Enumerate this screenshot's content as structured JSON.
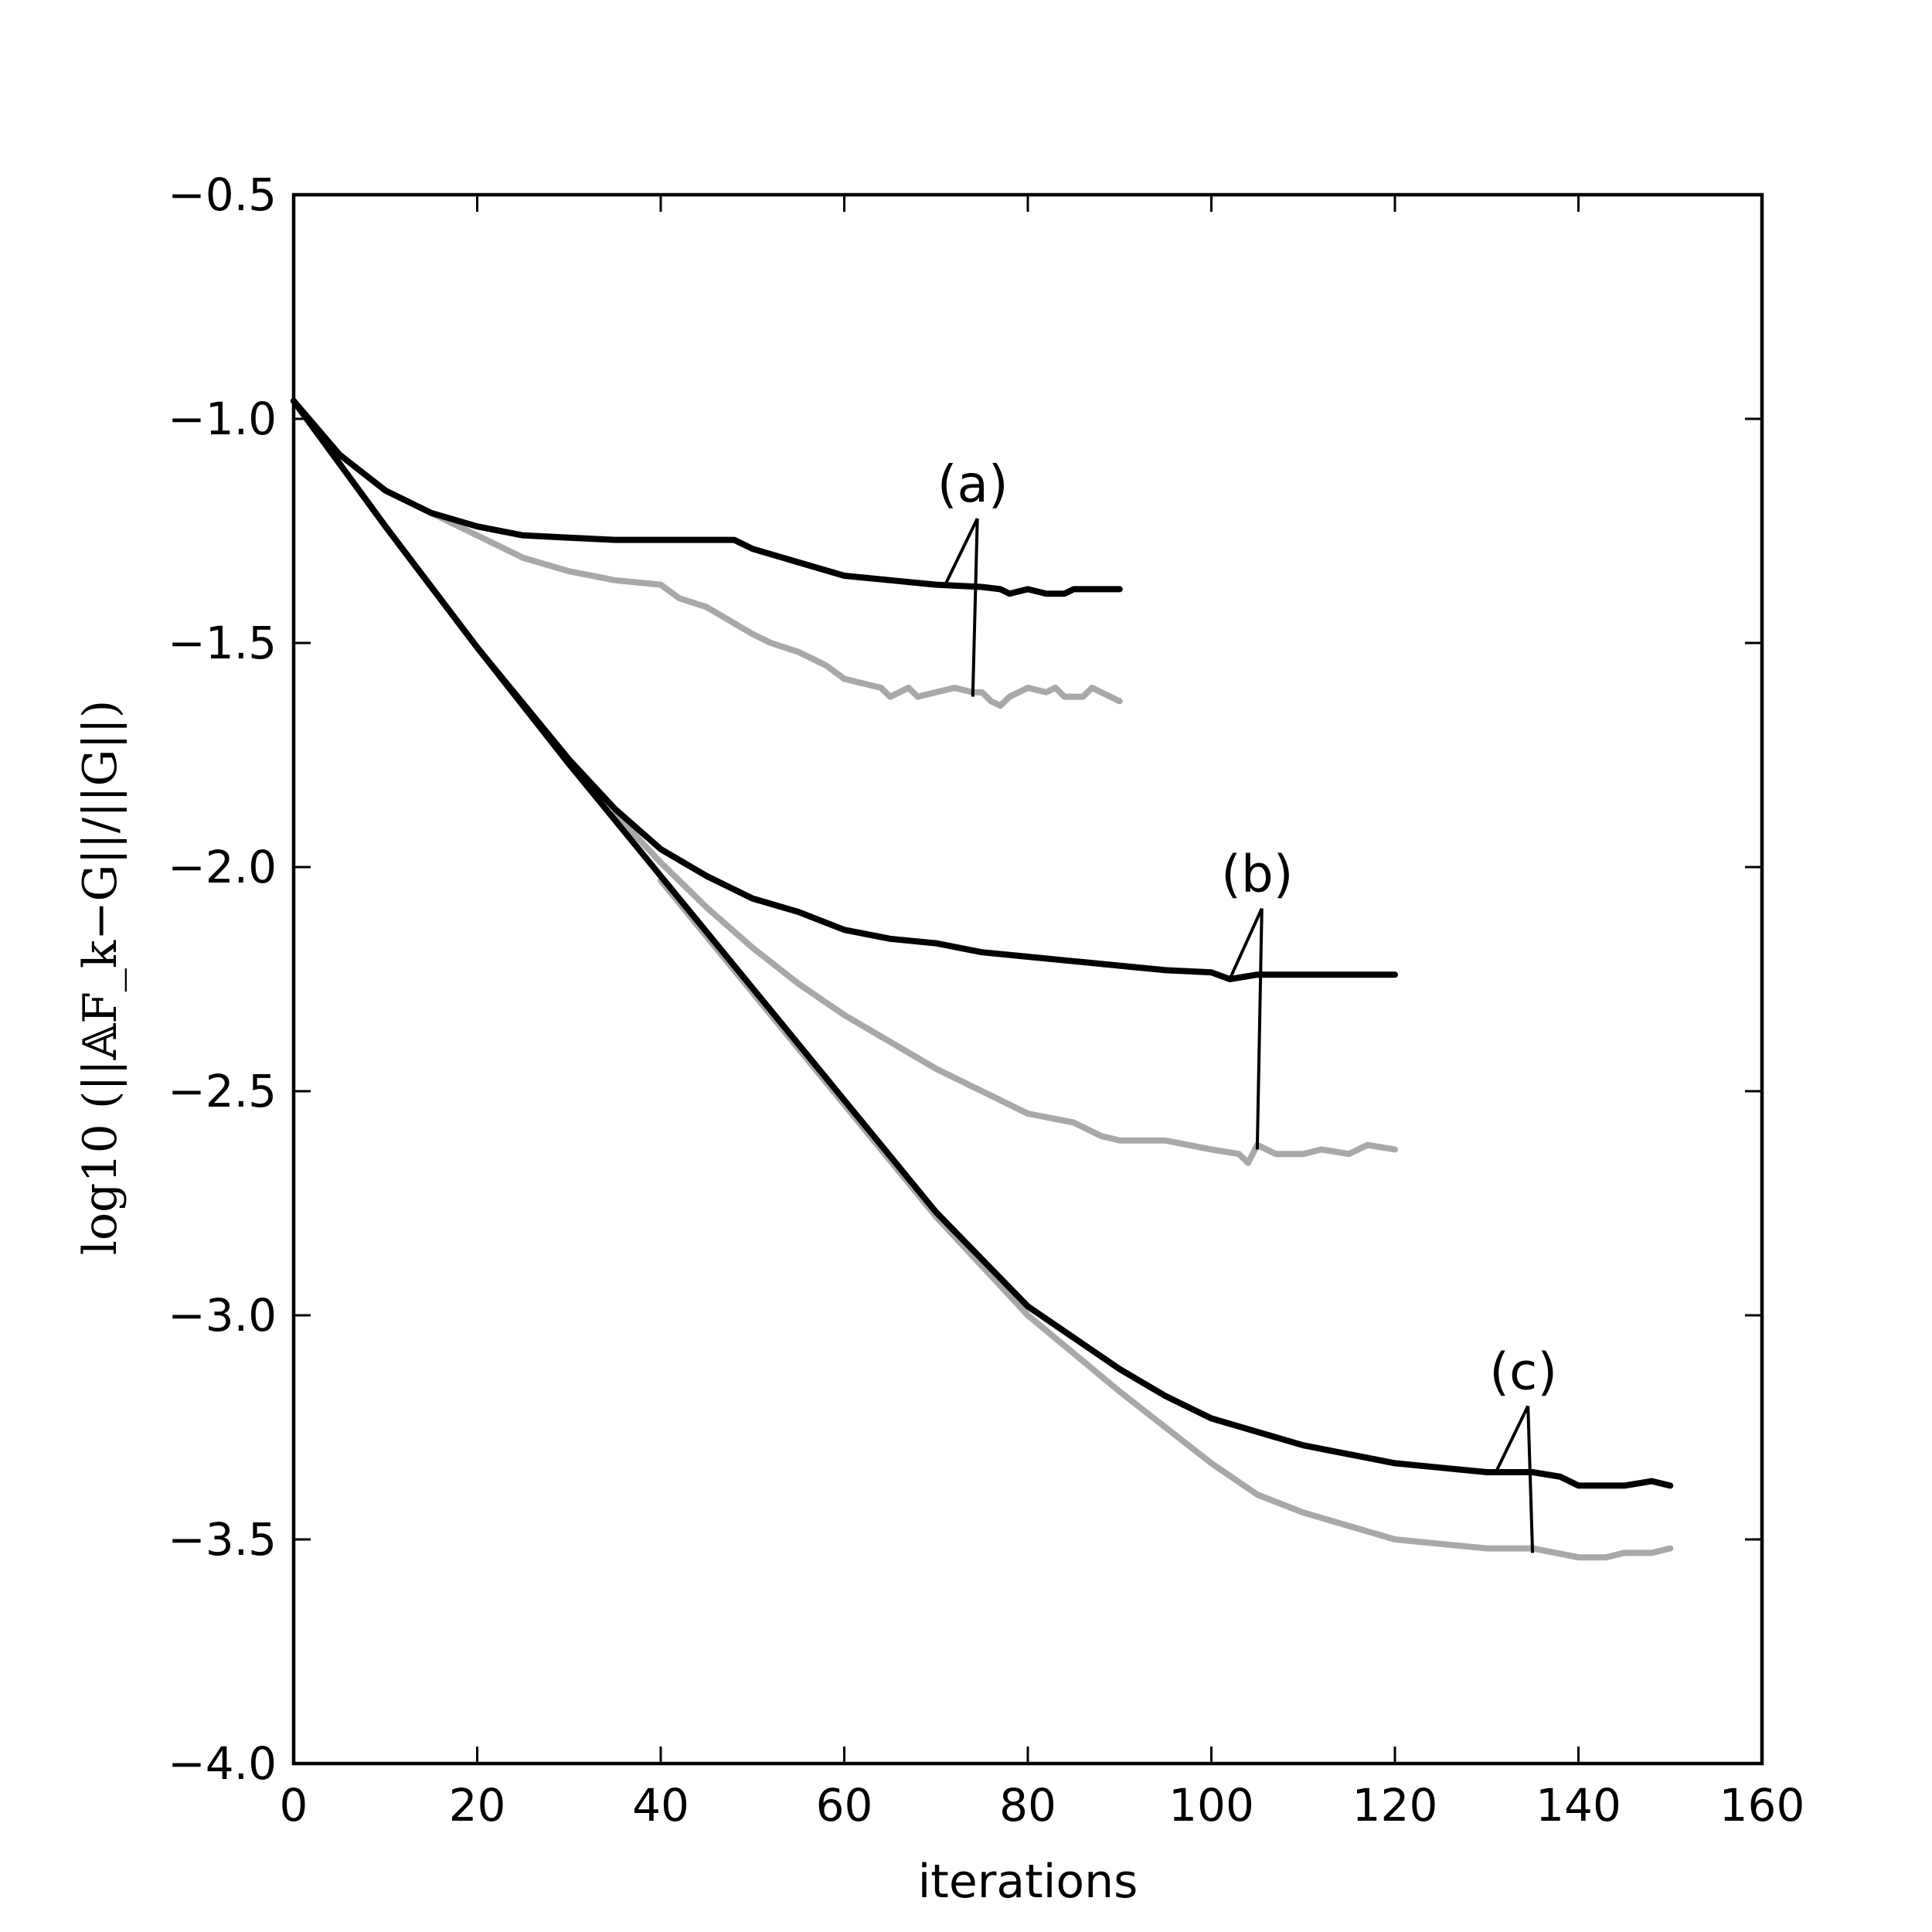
{
  "chart_data": {
    "type": "line",
    "title": "",
    "xlabel": "iterations",
    "ylabel": "log10 (||𝔸F_k−G||/||G||)",
    "xlim": [
      0,
      160
    ],
    "ylim": [
      -4.0,
      -0.5
    ],
    "xticks": [
      0,
      20,
      40,
      60,
      80,
      100,
      120,
      140,
      160
    ],
    "xtick_labels": [
      "0",
      "20",
      "40",
      "60",
      "80",
      "100",
      "120",
      "140",
      "160"
    ],
    "yticks": [
      -0.5,
      -1.0,
      -1.5,
      -2.0,
      -2.5,
      -3.0,
      -3.5,
      -4.0
    ],
    "ytick_labels": [
      "−0.5",
      "−1.0",
      "−1.5",
      "−2.0",
      "−2.5",
      "−3.0",
      "−3.5",
      "−4.0"
    ],
    "grid": false,
    "series": [
      {
        "name": "(a) black",
        "color": "#000000",
        "x": [
          0,
          5,
          10,
          15,
          20,
          25,
          30,
          35,
          40,
          45,
          48,
          50,
          55,
          60,
          65,
          70,
          75,
          77,
          78,
          80,
          82,
          84,
          85,
          90
        ],
        "y": [
          -0.96,
          -1.08,
          -1.16,
          -1.21,
          -1.24,
          -1.26,
          -1.265,
          -1.27,
          -1.27,
          -1.27,
          -1.27,
          -1.29,
          -1.32,
          -1.35,
          -1.36,
          -1.37,
          -1.375,
          -1.38,
          -1.39,
          -1.38,
          -1.39,
          -1.39,
          -1.38,
          -1.38
        ]
      },
      {
        "name": "(a) gray",
        "color": "#a8a8a8",
        "x": [
          15,
          20,
          25,
          30,
          35,
          40,
          42,
          45,
          50,
          52,
          55,
          58,
          60,
          62,
          64,
          65,
          67,
          68,
          70,
          72,
          74,
          75,
          76,
          77,
          78,
          80,
          82,
          83,
          84,
          86,
          87,
          88,
          90
        ],
        "y": [
          -1.21,
          -1.26,
          -1.31,
          -1.34,
          -1.36,
          -1.37,
          -1.4,
          -1.42,
          -1.48,
          -1.5,
          -1.52,
          -1.55,
          -1.58,
          -1.59,
          -1.6,
          -1.62,
          -1.6,
          -1.62,
          -1.61,
          -1.6,
          -1.61,
          -1.61,
          -1.63,
          -1.64,
          -1.62,
          -1.6,
          -1.61,
          -1.6,
          -1.62,
          -1.62,
          -1.6,
          -1.61,
          -1.63
        ]
      },
      {
        "name": "(b) black",
        "color": "#000000",
        "x": [
          0,
          10,
          20,
          30,
          35,
          40,
          45,
          50,
          55,
          60,
          65,
          70,
          75,
          80,
          85,
          90,
          95,
          100,
          102,
          105,
          110,
          115,
          120
        ],
        "y": [
          -0.96,
          -1.24,
          -1.51,
          -1.76,
          -1.87,
          -1.96,
          -2.02,
          -2.07,
          -2.1,
          -2.14,
          -2.16,
          -2.17,
          -2.19,
          -2.2,
          -2.21,
          -2.22,
          -2.23,
          -2.235,
          -2.25,
          -2.24,
          -2.24,
          -2.24,
          -2.24
        ]
      },
      {
        "name": "(b) gray",
        "color": "#a8a8a8",
        "x": [
          35,
          40,
          45,
          50,
          55,
          60,
          65,
          70,
          75,
          80,
          85,
          88,
          90,
          95,
          100,
          103,
          104,
          105,
          107,
          110,
          112,
          115,
          117,
          120
        ],
        "y": [
          -1.88,
          -1.99,
          -2.09,
          -2.18,
          -2.26,
          -2.33,
          -2.39,
          -2.45,
          -2.5,
          -2.55,
          -2.57,
          -2.6,
          -2.61,
          -2.61,
          -2.63,
          -2.64,
          -2.66,
          -2.62,
          -2.64,
          -2.64,
          -2.63,
          -2.64,
          -2.62,
          -2.63
        ]
      },
      {
        "name": "(c) black",
        "color": "#000000",
        "x": [
          0,
          10,
          20,
          30,
          40,
          50,
          60,
          70,
          80,
          90,
          95,
          100,
          105,
          110,
          115,
          120,
          125,
          130,
          135,
          138,
          140,
          142,
          145,
          148,
          150
        ],
        "y": [
          -0.96,
          -1.24,
          -1.51,
          -1.77,
          -2.02,
          -2.27,
          -2.52,
          -2.77,
          -2.98,
          -3.12,
          -3.18,
          -3.23,
          -3.26,
          -3.29,
          -3.31,
          -3.33,
          -3.34,
          -3.35,
          -3.35,
          -3.36,
          -3.38,
          -3.38,
          -3.38,
          -3.37,
          -3.38
        ]
      },
      {
        "name": "(c) gray",
        "color": "#a8a8a8",
        "x": [
          40,
          50,
          60,
          70,
          80,
          90,
          95,
          100,
          105,
          110,
          115,
          120,
          125,
          130,
          135,
          140,
          143,
          145,
          148,
          150
        ],
        "y": [
          -2.03,
          -2.28,
          -2.53,
          -2.78,
          -3.0,
          -3.17,
          -3.25,
          -3.33,
          -3.4,
          -3.44,
          -3.47,
          -3.5,
          -3.51,
          -3.52,
          -3.52,
          -3.54,
          -3.54,
          -3.53,
          -3.53,
          -3.52
        ]
      }
    ],
    "annotations": [
      {
        "text": "(a)",
        "x": 74.5,
        "y": -1.15,
        "targets": [
          {
            "x": 71,
            "y": -1.37
          },
          {
            "x": 74,
            "y": -1.62
          }
        ]
      },
      {
        "text": "(b)",
        "x": 105.5,
        "y": -2.02,
        "targets": [
          {
            "x": 102,
            "y": -2.25
          },
          {
            "x": 105,
            "y": -2.63
          }
        ]
      },
      {
        "text": "(c)",
        "x": 134.5,
        "y": -3.13,
        "targets": [
          {
            "x": 131,
            "y": -3.35
          },
          {
            "x": 135,
            "y": -3.53
          }
        ]
      }
    ]
  }
}
